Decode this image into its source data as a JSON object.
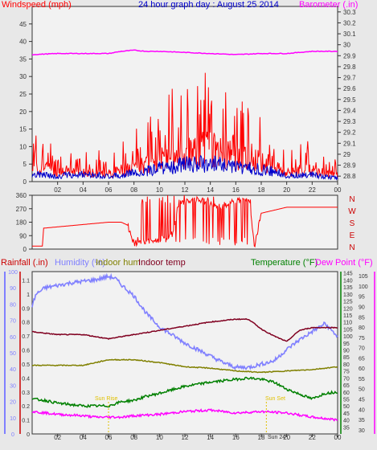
{
  "title": "24 hour graph day : August 25 2014",
  "colors": {
    "background": "#e8e8e8",
    "plot_bg": "#f2f2f2",
    "windspeed": "#ff0000",
    "gust_avg": "#0000cc",
    "barometer": "#ff00ff",
    "direction": "#ff0000",
    "rainfall": "#cc0000",
    "humidity": "#8080ff",
    "indoor_hum": "#808000",
    "indoor_temp": "#800020",
    "temperature": "#008000",
    "dew_point": "#ff00ff",
    "sun_label": "#e0c000",
    "title": "#0000cc"
  },
  "chart_data": [
    {
      "type": "line",
      "name": "wind-barometer",
      "left_axis_label": "Windspeed (mph)",
      "right_axis_label": "Barometer (.in)",
      "x_ticks": [
        "02",
        "04",
        "06",
        "08",
        "10",
        "12",
        "14",
        "16",
        "18",
        "20",
        "22",
        "00"
      ],
      "left_ticks": [
        "0",
        "5",
        "10",
        "15",
        "20",
        "25",
        "30",
        "35",
        "40",
        "45"
      ],
      "right_ticks": [
        "28.8",
        "28.9",
        "29",
        "29.1",
        "29.2",
        "29.3",
        "29.4",
        "29.5",
        "29.6",
        "29.7",
        "29.8",
        "29.9",
        "30",
        "30.1",
        "30.2",
        "30.3"
      ],
      "left_range": [
        0,
        50
      ],
      "right_range": [
        28.75,
        30.35
      ],
      "x_range": [
        0,
        24
      ],
      "series": [
        {
          "key": "wind",
          "x": [
            0,
            1,
            2,
            3,
            4,
            5,
            6,
            7,
            8,
            9,
            10,
            11,
            12,
            13,
            14,
            15,
            16,
            17,
            18,
            19,
            20,
            21,
            22,
            23,
            24
          ],
          "values": [
            4,
            5,
            3,
            4,
            3,
            3,
            3,
            4,
            5,
            6,
            8,
            9,
            10,
            11,
            12,
            10,
            9,
            8,
            7,
            6,
            3,
            4,
            4,
            3,
            2
          ]
        },
        {
          "key": "avg",
          "x": [
            0,
            1,
            2,
            3,
            4,
            5,
            6,
            7,
            8,
            9,
            10,
            11,
            12,
            13,
            14,
            15,
            16,
            17,
            18,
            19,
            20,
            21,
            22,
            23,
            24
          ],
          "values": [
            2,
            2,
            1.5,
            2,
            2,
            2,
            1.5,
            2,
            2.5,
            3,
            4,
            4,
            5,
            5,
            5,
            5,
            4,
            4,
            3.5,
            3,
            1.5,
            2,
            2,
            1.5,
            1
          ]
        },
        {
          "key": "baro",
          "x": [
            0,
            2,
            4,
            6,
            7,
            8,
            9,
            10,
            12,
            14,
            16,
            18,
            20,
            22,
            24
          ],
          "values": [
            29.91,
            29.92,
            29.92,
            29.92,
            29.94,
            29.95,
            29.94,
            29.94,
            29.93,
            29.92,
            29.91,
            29.92,
            29.92,
            29.94,
            29.94
          ]
        }
      ]
    },
    {
      "type": "line",
      "name": "wind-direction",
      "left_ticks": [
        "0",
        "90",
        "180",
        "270",
        "360"
      ],
      "right_labels": [
        "N",
        "W",
        "S",
        "E",
        "N"
      ],
      "left_range": [
        0,
        360
      ],
      "x_range": [
        0,
        24
      ],
      "series": [
        {
          "key": "dir",
          "x": [
            0,
            0.8,
            0.9,
            6,
            7,
            7.5,
            8,
            9,
            10,
            11,
            11.5,
            12,
            13,
            14,
            15,
            16,
            17,
            17.5,
            18,
            20,
            22,
            24
          ],
          "values": [
            20,
            20,
            140,
            180,
            180,
            160,
            40,
            50,
            60,
            100,
            300,
            320,
            330,
            300,
            280,
            320,
            330,
            30,
            240,
            280,
            280,
            280
          ]
        }
      ]
    },
    {
      "type": "line",
      "name": "rain-humidity-temp",
      "labels": [
        "Rainfall (.in)",
        "Humidity (%)",
        "Indoor hum",
        "Indoor temp",
        "Temperature (°F)",
        "Dew Point (°F)"
      ],
      "rain_ticks": [
        "0",
        "0.1",
        "0.2",
        "0.3",
        "0.4",
        "0.5",
        "0.6",
        "0.7",
        "0.8",
        "0.9",
        "1",
        "1.1"
      ],
      "humidity_ticks": [
        "0",
        "10",
        "20",
        "30",
        "40",
        "50",
        "60",
        "70",
        "80",
        "90",
        "100"
      ],
      "temp_ticks": [
        "35",
        "40",
        "45",
        "50",
        "55",
        "60",
        "65",
        "70",
        "75",
        "80",
        "85",
        "90",
        "95",
        "100",
        "105",
        "110",
        "115",
        "120",
        "125",
        "130",
        "135",
        "140",
        "145"
      ],
      "dew_ticks": [
        "30",
        "35",
        "40",
        "45",
        "50",
        "55",
        "60",
        "65",
        "70",
        "75",
        "80",
        "85",
        "90",
        "95",
        "100",
        "105"
      ],
      "humidity_range": [
        0,
        100
      ],
      "temp_range": [
        30,
        146
      ],
      "x_range": [
        0,
        24
      ],
      "sun_labels": {
        "sunrise": "Sun Rise",
        "sunset": "Sun Set",
        "date": "Sun 24"
      },
      "series": [
        {
          "key": "humidity",
          "x": [
            0,
            0.3,
            1,
            3,
            5,
            6,
            6.5,
            7,
            8,
            9,
            10,
            12,
            14,
            15,
            16,
            17,
            18,
            19,
            20,
            21,
            22,
            23,
            23.5,
            24
          ],
          "values": [
            79,
            86,
            90,
            93,
            95,
            97,
            96,
            92,
            85,
            74,
            66,
            56,
            48,
            44,
            41,
            41,
            43,
            45,
            52,
            58,
            63,
            68,
            64,
            60
          ]
        },
        {
          "key": "indoor_temp",
          "x": [
            0,
            2,
            4,
            6,
            8,
            10,
            12,
            14,
            16,
            17,
            18,
            19,
            20,
            21,
            22,
            24
          ],
          "values": [
            103,
            101,
            101,
            98,
            101,
            104,
            107,
            110,
            112,
            112,
            105,
            100,
            96,
            104,
            106,
            106
          ]
        },
        {
          "key": "indoor_hum",
          "x": [
            0,
            2,
            4,
            5,
            6,
            8,
            10,
            12,
            14,
            16,
            18,
            20,
            22,
            24
          ],
          "values": [
            79,
            79,
            79,
            81,
            83,
            83,
            81,
            78,
            77,
            75,
            74,
            75,
            76,
            78
          ]
        },
        {
          "key": "temperature",
          "x": [
            0,
            1,
            2,
            4,
            5,
            6,
            7,
            8,
            9,
            10,
            12,
            14,
            16,
            17,
            18,
            19,
            20,
            22,
            23,
            24
          ],
          "values": [
            55,
            54,
            52,
            50,
            50,
            50,
            53,
            54,
            57,
            59,
            64,
            67,
            69,
            70,
            69,
            67,
            62,
            55,
            59,
            60
          ]
        },
        {
          "key": "dew_point",
          "x": [
            0,
            2,
            4,
            5,
            6,
            7,
            8,
            10,
            12,
            14,
            16,
            18,
            20,
            22,
            24
          ],
          "values": [
            46,
            44,
            43,
            42,
            42,
            42,
            43,
            44,
            46,
            47,
            45,
            46,
            45,
            42,
            40
          ]
        }
      ]
    }
  ]
}
